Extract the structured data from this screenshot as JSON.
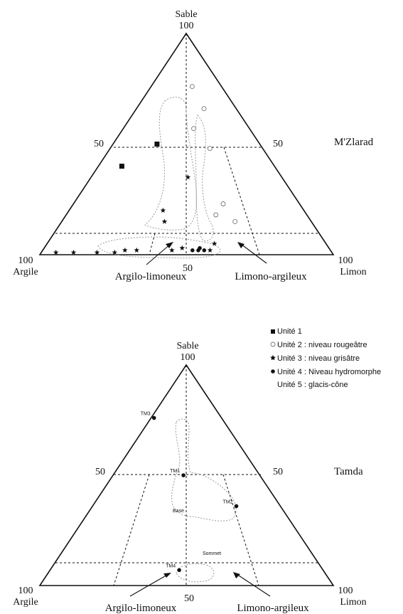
{
  "chart_data": [
    {
      "type": "scatter",
      "subtype": "ternary",
      "site": "M'Zlarad",
      "axes": {
        "top": {
          "name": "Sable",
          "max": "100"
        },
        "left": {
          "name": "Argile",
          "max": "100"
        },
        "right": {
          "name": "Limon",
          "max": "100"
        },
        "mid": "50"
      },
      "zones": [
        "Argilo-limoneux",
        "Limono-argileux"
      ],
      "points": [
        {
          "unit": "1",
          "sable": 50,
          "argile": 35,
          "limon": 15
        },
        {
          "unit": "1",
          "sable": 40,
          "argile": 52,
          "limon": 8
        },
        {
          "unit": "2",
          "sable": 76,
          "argile": 10,
          "limon": 14
        },
        {
          "unit": "2",
          "sable": 66,
          "argile": 11,
          "limon": 23
        },
        {
          "unit": "2",
          "sable": 57,
          "argile": 19,
          "limon": 24
        },
        {
          "unit": "2",
          "sable": 48,
          "argile": 18,
          "limon": 34
        },
        {
          "unit": "2",
          "sable": 23,
          "argile": 26,
          "limon": 51
        },
        {
          "unit": "2",
          "sable": 18,
          "argile": 31,
          "limon": 51
        },
        {
          "unit": "2",
          "sable": 15,
          "argile": 26,
          "limon": 59
        },
        {
          "unit": "3",
          "sable": 35,
          "argile": 32,
          "limon": 33
        },
        {
          "unit": "3",
          "sable": 20,
          "argile": 48,
          "limon": 32
        },
        {
          "unit": "3",
          "sable": 15,
          "argile": 50,
          "limon": 35
        },
        {
          "unit": "3",
          "sable": 1,
          "argile": 94,
          "limon": 5
        },
        {
          "unit": "3",
          "sable": 1,
          "argile": 88,
          "limon": 11
        },
        {
          "unit": "3",
          "sable": 1,
          "argile": 80,
          "limon": 19
        },
        {
          "unit": "3",
          "sable": 1,
          "argile": 74,
          "limon": 25
        },
        {
          "unit": "3",
          "sable": 2,
          "argile": 70,
          "limon": 28
        },
        {
          "unit": "3",
          "sable": 2,
          "argile": 66,
          "limon": 32
        },
        {
          "unit": "3",
          "sable": 2,
          "argile": 54,
          "limon": 44
        },
        {
          "unit": "3",
          "sable": 3,
          "argile": 50,
          "limon": 47
        },
        {
          "unit": "3",
          "sable": 2,
          "argile": 41,
          "limon": 57
        },
        {
          "unit": "3",
          "sable": 5,
          "argile": 38,
          "limon": 57
        },
        {
          "unit": "4",
          "sable": 2,
          "argile": 43,
          "limon": 55
        },
        {
          "unit": "4",
          "sable": 2,
          "argile": 45,
          "limon": 53
        },
        {
          "unit": "4",
          "sable": 3,
          "argile": 44,
          "limon": 53
        },
        {
          "unit": "4",
          "sable": 2,
          "argile": 47,
          "limon": 51
        }
      ]
    },
    {
      "type": "scatter",
      "subtype": "ternary",
      "site": "Tamda",
      "axes": {
        "top": {
          "name": "Sable",
          "max": "100"
        },
        "left": {
          "name": "Argile",
          "max": "100"
        },
        "right": {
          "name": "Limon",
          "max": "100"
        },
        "mid": "50"
      },
      "zones": [
        "Argilo-limoneux",
        "Limono-argileux"
      ],
      "points": [
        {
          "unit": "4",
          "label": "TM3",
          "sable": 76,
          "argile": 23,
          "limon": 1
        },
        {
          "unit": "4",
          "label": "TM1",
          "sable": 50,
          "argile": 26,
          "limon": 24
        },
        {
          "unit": "4",
          "label": "TM2",
          "sable": 36,
          "argile": 15,
          "limon": 49
        },
        {
          "unit": "4",
          "label": "TM4",
          "sable": 7,
          "argile": 49,
          "limon": 44
        }
      ],
      "annotations": [
        "Base",
        "Sommet"
      ]
    }
  ],
  "legend": [
    {
      "marker": "square",
      "label": "Unité 1"
    },
    {
      "marker": "circle-open",
      "label": "Unité 2 : niveau rougeâtre"
    },
    {
      "marker": "star",
      "label": "Unité 3 : niveau grisâtre"
    },
    {
      "marker": "circle-filled",
      "label": "Unité 4 : Niveau hydromorphe"
    },
    {
      "marker": "dotted-line",
      "label": "Unité 5 : glacis-cône"
    }
  ],
  "colors": {
    "ink": "#111111",
    "envelope": "#9a9a9a"
  }
}
